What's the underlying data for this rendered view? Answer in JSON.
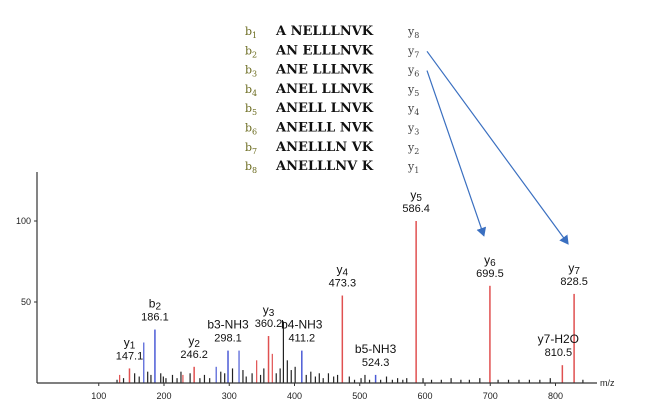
{
  "fragment_table": [
    {
      "b": "b",
      "b_sub": "1",
      "seq": "A NELLLNVK",
      "y": "y",
      "y_sub": "8"
    },
    {
      "b": "b",
      "b_sub": "2",
      "seq": "AN ELLLNVK",
      "y": "y",
      "y_sub": "7"
    },
    {
      "b": "b",
      "b_sub": "3",
      "seq": "ANE LLLNVK",
      "y": "y",
      "y_sub": "6"
    },
    {
      "b": "b",
      "b_sub": "4",
      "seq": "ANEL LLNVK",
      "y": "y",
      "y_sub": "5"
    },
    {
      "b": "b",
      "b_sub": "5",
      "seq": "ANELL LNVK",
      "y": "y",
      "y_sub": "4"
    },
    {
      "b": "b",
      "b_sub": "6",
      "seq": "ANELLL NVK",
      "y": "y",
      "y_sub": "3"
    },
    {
      "b": "b",
      "b_sub": "7",
      "seq": "ANELLLN VK",
      "y": "y",
      "y_sub": "2"
    },
    {
      "b": "b",
      "b_sub": "8",
      "seq": "ANELLLNV K",
      "y": "y",
      "y_sub": "1"
    }
  ],
  "colors": {
    "y_ion": "#e05050",
    "b_ion": "#4b5bd6",
    "noise": "#222222",
    "arrow": "#3a6fc0",
    "axis": "#333333"
  },
  "chart_data": {
    "type": "bar",
    "xlabel": "m/z",
    "ylabel": "",
    "xlim": [
      0,
      860
    ],
    "ylim": [
      0,
      125
    ],
    "x_ticks": [
      100,
      200,
      300,
      400,
      500,
      600,
      700,
      800
    ],
    "y_ticks": [
      50,
      100
    ],
    "annotated_peaks": [
      {
        "label": "y1",
        "mz": "147.1",
        "x": 147.1,
        "y": 9,
        "ion": "y"
      },
      {
        "label": "b2",
        "mz": "186.1",
        "x": 186.1,
        "y": 33,
        "ion": "b"
      },
      {
        "label": "y2",
        "mz": "246.2",
        "x": 246.2,
        "y": 10,
        "ion": "y"
      },
      {
        "label": "b3-NH3",
        "mz": "298.1",
        "x": 298.1,
        "y": 20,
        "ion": "b"
      },
      {
        "label": "y3",
        "mz": "360.2",
        "x": 360.2,
        "y": 29,
        "ion": "y"
      },
      {
        "label": "b4-NH3",
        "mz": "411.2",
        "x": 411.2,
        "y": 20,
        "ion": "b"
      },
      {
        "label": "y4",
        "mz": "473.3",
        "x": 473.3,
        "y": 54,
        "ion": "y"
      },
      {
        "label": "b5-NH3",
        "mz": "524.3",
        "x": 524.3,
        "y": 5,
        "ion": "b"
      },
      {
        "label": "y5",
        "mz": "586.4",
        "x": 586.4,
        "y": 100,
        "ion": "y"
      },
      {
        "label": "y6",
        "mz": "699.5",
        "x": 699.5,
        "y": 60,
        "ion": "y"
      },
      {
        "label": "y7-H2O",
        "mz": "810.5",
        "x": 810.5,
        "y": 11,
        "ion": "y"
      },
      {
        "label": "y7",
        "mz": "828.5",
        "x": 828.5,
        "y": 55,
        "ion": "y"
      }
    ],
    "other_peaks": [
      {
        "x": 128,
        "y": 2,
        "ion": "n"
      },
      {
        "x": 132,
        "y": 5,
        "ion": "y"
      },
      {
        "x": 138,
        "y": 3,
        "ion": "n"
      },
      {
        "x": 155,
        "y": 6,
        "ion": "n"
      },
      {
        "x": 162,
        "y": 4,
        "ion": "n"
      },
      {
        "x": 169,
        "y": 25,
        "ion": "b"
      },
      {
        "x": 175,
        "y": 7,
        "ion": "n"
      },
      {
        "x": 180,
        "y": 5,
        "ion": "n"
      },
      {
        "x": 195,
        "y": 6,
        "ion": "n"
      },
      {
        "x": 199,
        "y": 4,
        "ion": "n"
      },
      {
        "x": 203,
        "y": 3,
        "ion": "n"
      },
      {
        "x": 213,
        "y": 5,
        "ion": "n"
      },
      {
        "x": 220,
        "y": 3,
        "ion": "n"
      },
      {
        "x": 226,
        "y": 7,
        "ion": "n"
      },
      {
        "x": 229,
        "y": 5,
        "ion": "y"
      },
      {
        "x": 240,
        "y": 6,
        "ion": "n"
      },
      {
        "x": 255,
        "y": 3,
        "ion": "n"
      },
      {
        "x": 262,
        "y": 5,
        "ion": "n"
      },
      {
        "x": 270,
        "y": 3,
        "ion": "n"
      },
      {
        "x": 280,
        "y": 10,
        "ion": "b"
      },
      {
        "x": 287,
        "y": 7,
        "ion": "n"
      },
      {
        "x": 293,
        "y": 6,
        "ion": "n"
      },
      {
        "x": 305,
        "y": 9,
        "ion": "n"
      },
      {
        "x": 315,
        "y": 20,
        "ion": "b"
      },
      {
        "x": 321,
        "y": 8,
        "ion": "n"
      },
      {
        "x": 326,
        "y": 4,
        "ion": "n"
      },
      {
        "x": 335,
        "y": 6,
        "ion": "n"
      },
      {
        "x": 342,
        "y": 14,
        "ion": "y"
      },
      {
        "x": 348,
        "y": 5,
        "ion": "n"
      },
      {
        "x": 353,
        "y": 9,
        "ion": "n"
      },
      {
        "x": 366,
        "y": 18,
        "ion": "y"
      },
      {
        "x": 372,
        "y": 6,
        "ion": "n"
      },
      {
        "x": 378,
        "y": 9,
        "ion": "n"
      },
      {
        "x": 383,
        "y": 38,
        "ion": "n"
      },
      {
        "x": 389,
        "y": 14,
        "ion": "n"
      },
      {
        "x": 395,
        "y": 8,
        "ion": "n"
      },
      {
        "x": 401,
        "y": 10,
        "ion": "n"
      },
      {
        "x": 418,
        "y": 5,
        "ion": "n"
      },
      {
        "x": 425,
        "y": 7,
        "ion": "n"
      },
      {
        "x": 432,
        "y": 4,
        "ion": "n"
      },
      {
        "x": 438,
        "y": 6,
        "ion": "n"
      },
      {
        "x": 444,
        "y": 3,
        "ion": "n"
      },
      {
        "x": 452,
        "y": 6,
        "ion": "n"
      },
      {
        "x": 460,
        "y": 4,
        "ion": "n"
      },
      {
        "x": 466,
        "y": 5,
        "ion": "n"
      },
      {
        "x": 484,
        "y": 4,
        "ion": "n"
      },
      {
        "x": 492,
        "y": 2,
        "ion": "n"
      },
      {
        "x": 502,
        "y": 3,
        "ion": "n"
      },
      {
        "x": 508,
        "y": 5,
        "ion": "n"
      },
      {
        "x": 515,
        "y": 2,
        "ion": "n"
      },
      {
        "x": 532,
        "y": 2,
        "ion": "n"
      },
      {
        "x": 541,
        "y": 4,
        "ion": "n"
      },
      {
        "x": 550,
        "y": 2,
        "ion": "n"
      },
      {
        "x": 558,
        "y": 3,
        "ion": "n"
      },
      {
        "x": 566,
        "y": 2,
        "ion": "n"
      },
      {
        "x": 572,
        "y": 3,
        "ion": "n"
      },
      {
        "x": 597,
        "y": 3,
        "ion": "n"
      },
      {
        "x": 610,
        "y": 2,
        "ion": "n"
      },
      {
        "x": 625,
        "y": 2,
        "ion": "n"
      },
      {
        "x": 640,
        "y": 3,
        "ion": "n"
      },
      {
        "x": 655,
        "y": 2,
        "ion": "n"
      },
      {
        "x": 668,
        "y": 2,
        "ion": "n"
      },
      {
        "x": 684,
        "y": 3,
        "ion": "n"
      },
      {
        "x": 712,
        "y": 2,
        "ion": "n"
      },
      {
        "x": 728,
        "y": 2,
        "ion": "n"
      },
      {
        "x": 744,
        "y": 2,
        "ion": "n"
      },
      {
        "x": 760,
        "y": 2,
        "ion": "n"
      },
      {
        "x": 776,
        "y": 2,
        "ion": "n"
      },
      {
        "x": 792,
        "y": 3,
        "ion": "n"
      },
      {
        "x": 842,
        "y": 2,
        "ion": "n"
      }
    ],
    "arrows": [
      {
        "from_row": 2,
        "to_peak": "y6"
      },
      {
        "from_row": 1,
        "to_peak": "y7"
      }
    ]
  }
}
